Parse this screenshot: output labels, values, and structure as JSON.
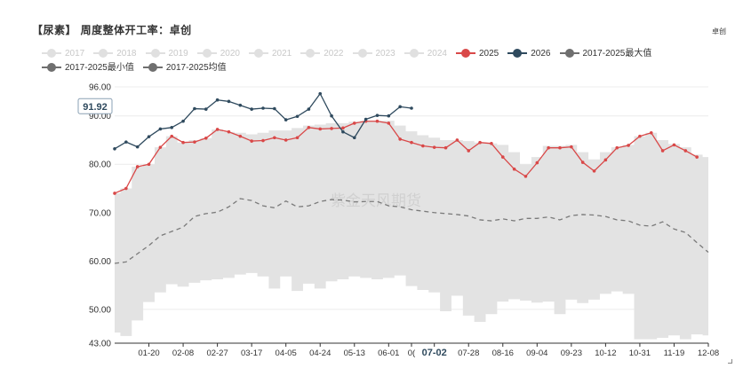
{
  "header": {
    "title": "【尿素】 周度整体开工率：卓创",
    "brand": "卓创"
  },
  "colors": {
    "s2025": "#d94848",
    "s2026": "#2f4a5e",
    "smax": "#7a7a7a",
    "smin": "#7a7a7a",
    "savg": "#7a7a7a",
    "band": "#e3e3e3",
    "inactive": "#c8c8c8"
  },
  "legend": [
    {
      "key": "y2017",
      "label": "2017",
      "active": false,
      "color": "#c8c8c8"
    },
    {
      "key": "y2018",
      "label": "2018",
      "active": false,
      "color": "#c8c8c8"
    },
    {
      "key": "y2019",
      "label": "2019",
      "active": false,
      "color": "#c8c8c8"
    },
    {
      "key": "y2020",
      "label": "2020",
      "active": false,
      "color": "#c8c8c8"
    },
    {
      "key": "y2021",
      "label": "2021",
      "active": false,
      "color": "#c8c8c8"
    },
    {
      "key": "y2022",
      "label": "2022",
      "active": false,
      "color": "#c8c8c8"
    },
    {
      "key": "y2023",
      "label": "2023",
      "active": false,
      "color": "#c8c8c8"
    },
    {
      "key": "y2024",
      "label": "2024",
      "active": false,
      "color": "#c8c8c8"
    },
    {
      "key": "y2025",
      "label": "2025",
      "active": true,
      "color": "#d94848"
    },
    {
      "key": "y2026",
      "label": "2026",
      "active": true,
      "color": "#2f4a5e"
    },
    {
      "key": "ymax",
      "label": "2017-2025最大值",
      "active": true,
      "color": "#6f6f6f"
    },
    {
      "key": "ymin",
      "label": "2017-2025最小值",
      "active": true,
      "color": "#6f6f6f"
    },
    {
      "key": "yavg",
      "label": "2017-2025均值",
      "active": true,
      "color": "#6f6f6f"
    }
  ],
  "watermark": "紫金天风期货",
  "chart_data": {
    "type": "line",
    "ylim": [
      43,
      96
    ],
    "yticks": [
      "96.00",
      "90.00",
      "80.00",
      "70.00",
      "60.00",
      "50.00",
      "43.00"
    ],
    "ytick_values": [
      96,
      90,
      80,
      70,
      60,
      50,
      43
    ],
    "x_count": 53,
    "xtick_labels": [
      {
        "i": 3,
        "label": "01-20"
      },
      {
        "i": 6,
        "label": "02-08"
      },
      {
        "i": 9,
        "label": "02-27"
      },
      {
        "i": 12,
        "label": "03-17"
      },
      {
        "i": 15,
        "label": "04-05"
      },
      {
        "i": 18,
        "label": "04-24"
      },
      {
        "i": 21,
        "label": "05-13"
      },
      {
        "i": 24,
        "label": "06-01"
      },
      {
        "i": 26,
        "label": "0("
      },
      {
        "i": 28,
        "label": "07-02"
      },
      {
        "i": 31,
        "label": "07-28"
      },
      {
        "i": 34,
        "label": "08-16"
      },
      {
        "i": 37,
        "label": "09-04"
      },
      {
        "i": 40,
        "label": "09-23"
      },
      {
        "i": 43,
        "label": "10-12"
      },
      {
        "i": 46,
        "label": "10-31"
      },
      {
        "i": 49,
        "label": "11-19"
      },
      {
        "i": 52,
        "label": "12-08"
      }
    ],
    "hover_label": "91.92",
    "hover_index": 0,
    "series": [
      {
        "name": "2025",
        "values": [
          74,
          75,
          79.5,
          80,
          83.5,
          85.8,
          84.5,
          84.6,
          85.4,
          87.2,
          86.7,
          85.8,
          84.8,
          84.9,
          85.5,
          85,
          85.5,
          87.6,
          87.3,
          87.4,
          87.5,
          88.5,
          88.9,
          88.9,
          88.5,
          85.2,
          84.5,
          83.8,
          83.5,
          83.4,
          85,
          82.8,
          84.5,
          84.3,
          81.5,
          79,
          77.5,
          80.3,
          83.4,
          83.4,
          83.6,
          80.4,
          78.6,
          80.9,
          83.4,
          83.9,
          85.8,
          86.5,
          82.8,
          84,
          82.8,
          81.5,
          null
        ]
      },
      {
        "name": "2026",
        "values": [
          83.2,
          84.6,
          83.6,
          85.7,
          87.3,
          87.6,
          88.9,
          91.5,
          91.4,
          93.3,
          93,
          92.2,
          91.4,
          91.6,
          91.5,
          89.2,
          89.9,
          91.4,
          94.6,
          90,
          86.7,
          85.5,
          89.3,
          90.1,
          90,
          91.9,
          91.6,
          null,
          null,
          null,
          null,
          null,
          null,
          null,
          null,
          null,
          null,
          null,
          null,
          null,
          null,
          null,
          null,
          null,
          null,
          null,
          null,
          null,
          null,
          null,
          null,
          null,
          null
        ]
      },
      {
        "name": "2017-2025均值",
        "values": [
          59.5,
          59.8,
          61.5,
          63.2,
          65.2,
          66.1,
          67,
          69.2,
          69.8,
          70.1,
          71.2,
          72.9,
          72.5,
          71.4,
          71,
          72.4,
          71.2,
          71.4,
          72.3,
          72.7,
          72.6,
          72.2,
          72.3,
          72.3,
          71.4,
          71.2,
          70.6,
          70.3,
          70,
          69.8,
          69.6,
          69.3,
          68.5,
          68.3,
          68.7,
          68.3,
          68.8,
          68.8,
          69.1,
          68.5,
          69.4,
          69.6,
          69.5,
          69.2,
          68.5,
          68.3,
          67.4,
          67.2,
          68.1,
          66.6,
          65.9,
          63.8,
          61.8
        ]
      }
    ],
    "band": {
      "max": [
        74,
        75,
        79.5,
        80,
        83.5,
        85.8,
        84.5,
        85,
        85.4,
        87.2,
        86.7,
        86.5,
        86.2,
        86.5,
        87,
        87,
        87.5,
        88,
        88.2,
        88.5,
        88.5,
        88.8,
        89,
        89,
        89,
        88,
        86.8,
        86,
        85.5,
        85,
        85,
        84.8,
        84.5,
        84.3,
        84,
        82.5,
        80,
        81.5,
        83.8,
        83.8,
        84,
        82.5,
        81,
        82.5,
        83.5,
        84,
        85.8,
        86.5,
        85,
        84.2,
        83.5,
        82,
        81.5
      ],
      "min": [
        45.2,
        44.5,
        47.7,
        51.5,
        53.5,
        55.2,
        54.7,
        55.5,
        56,
        56.2,
        56.5,
        57.2,
        57.5,
        56.8,
        54.3,
        56.8,
        53.8,
        55.3,
        54.3,
        55.8,
        56.2,
        56.8,
        56.5,
        56.2,
        56.5,
        57,
        54.8,
        54,
        53.5,
        49.6,
        52.8,
        48.7,
        47.4,
        49,
        51.6,
        52.1,
        51.8,
        51.4,
        51.6,
        49,
        52,
        51.3,
        52,
        53.2,
        53.7,
        53.2,
        43.8,
        43.8,
        44.1,
        44.6,
        43.8,
        44.8,
        44.6
      ]
    }
  }
}
